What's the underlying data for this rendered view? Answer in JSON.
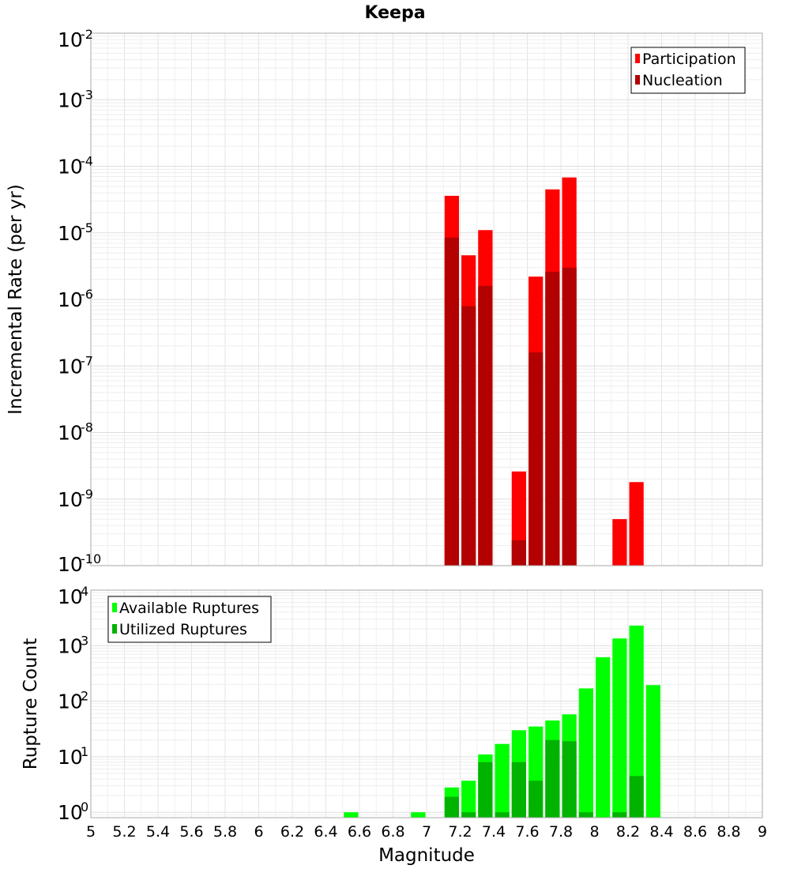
{
  "chart_data": [
    {
      "type": "bar",
      "title": "Keepa",
      "xlabel": "",
      "ylabel": "Incremental Rate (per yr)",
      "xlim": [
        5,
        9
      ],
      "ylim": [
        1e-10,
        0.01
      ],
      "yscale": "log",
      "ytick_exponents": [
        -10,
        -9,
        -8,
        -7,
        -6,
        -5,
        -4,
        -3,
        -2
      ],
      "grid": true,
      "legend_position": "top-right",
      "bar_width": 0.1,
      "series": [
        {
          "name": "Participation",
          "color": "#ff0000",
          "points": [
            {
              "x": 7.15,
              "y": 3.6e-05
            },
            {
              "x": 7.25,
              "y": 4.6e-06
            },
            {
              "x": 7.35,
              "y": 1.1e-05
            },
            {
              "x": 7.55,
              "y": 2.6e-09
            },
            {
              "x": 7.65,
              "y": 2.2e-06
            },
            {
              "x": 7.75,
              "y": 4.5e-05
            },
            {
              "x": 7.85,
              "y": 6.8e-05
            },
            {
              "x": 8.15,
              "y": 5e-10
            },
            {
              "x": 8.25,
              "y": 1.8e-09
            }
          ]
        },
        {
          "name": "Nucleation",
          "color": "#b30000",
          "points": [
            {
              "x": 7.15,
              "y": 8.5e-06
            },
            {
              "x": 7.25,
              "y": 7.9e-07
            },
            {
              "x": 7.35,
              "y": 1.6e-06
            },
            {
              "x": 7.55,
              "y": 2.4e-10
            },
            {
              "x": 7.65,
              "y": 1.6e-07
            },
            {
              "x": 7.75,
              "y": 2.6e-06
            },
            {
              "x": 7.85,
              "y": 3e-06
            }
          ]
        }
      ]
    },
    {
      "type": "bar",
      "title": "",
      "xlabel": "Magnitude",
      "ylabel": "Rupture Count",
      "xlim": [
        5,
        9
      ],
      "ylim": [
        0.8,
        10000
      ],
      "yscale": "log",
      "ytick_exponents": [
        0,
        1,
        2,
        3,
        4
      ],
      "xticks": [
        "5",
        "5.2",
        "5.4",
        "5.6",
        "5.8",
        "6",
        "6.2",
        "6.4",
        "6.6",
        "6.8",
        "7",
        "7.2",
        "7.4",
        "7.6",
        "7.8",
        "8",
        "8.2",
        "8.4",
        "8.6",
        "8.8",
        "9"
      ],
      "grid": true,
      "legend_position": "top-left",
      "bar_width": 0.1,
      "series": [
        {
          "name": "Available Ruptures",
          "color": "#00ff00",
          "points": [
            {
              "x": 6.55,
              "y": 1
            },
            {
              "x": 6.95,
              "y": 1
            },
            {
              "x": 7.15,
              "y": 2.8
            },
            {
              "x": 7.25,
              "y": 3.7
            },
            {
              "x": 7.35,
              "y": 11
            },
            {
              "x": 7.45,
              "y": 17
            },
            {
              "x": 7.55,
              "y": 30
            },
            {
              "x": 7.65,
              "y": 35
            },
            {
              "x": 7.75,
              "y": 45
            },
            {
              "x": 7.85,
              "y": 58
            },
            {
              "x": 7.95,
              "y": 170
            },
            {
              "x": 8.05,
              "y": 620
            },
            {
              "x": 8.15,
              "y": 1350
            },
            {
              "x": 8.25,
              "y": 2300
            },
            {
              "x": 8.35,
              "y": 195
            }
          ]
        },
        {
          "name": "Utilized Ruptures",
          "color": "#00b300",
          "points": [
            {
              "x": 7.15,
              "y": 1.9
            },
            {
              "x": 7.25,
              "y": 1
            },
            {
              "x": 7.35,
              "y": 8
            },
            {
              "x": 7.45,
              "y": 1
            },
            {
              "x": 7.55,
              "y": 8
            },
            {
              "x": 7.65,
              "y": 3.7
            },
            {
              "x": 7.75,
              "y": 20
            },
            {
              "x": 7.85,
              "y": 19
            },
            {
              "x": 7.95,
              "y": 1
            },
            {
              "x": 8.15,
              "y": 1
            },
            {
              "x": 8.25,
              "y": 4.5
            }
          ]
        }
      ]
    }
  ]
}
